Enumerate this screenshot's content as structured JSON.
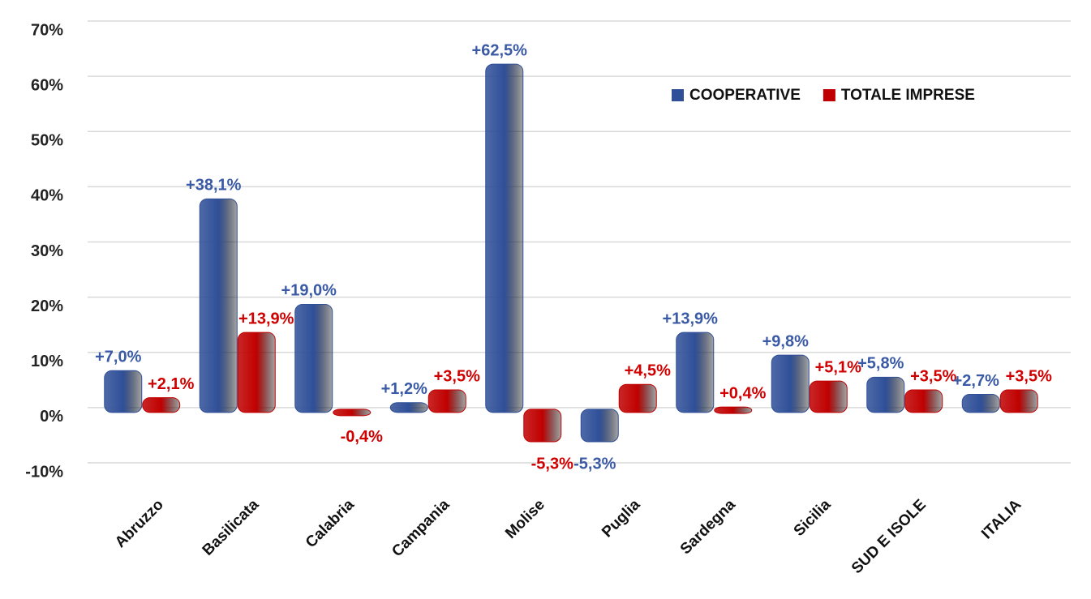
{
  "chart_data": {
    "type": "bar",
    "categories": [
      "Abruzzo",
      "Basilicata",
      "Calabria",
      "Campania",
      "Molise",
      "Puglia",
      "Sardegna",
      "Sicilia",
      "SUD E ISOLE",
      "ITALIA"
    ],
    "series": [
      {
        "name": "COOPERATIVE",
        "color": "#2f4f98",
        "label_color": "#3a5aa6",
        "values": [
          7.0,
          38.1,
          19.0,
          1.2,
          62.5,
          -5.3,
          13.9,
          9.8,
          5.8,
          2.7
        ],
        "value_labels": [
          "+7,0%",
          "+38,1%",
          "+19,0%",
          "+1,2%",
          "+62,5%",
          "-5,3%",
          "+13,9%",
          "+9,8%",
          "+5,8%",
          "+2,7%"
        ]
      },
      {
        "name": "TOTALE IMPRESE",
        "color": "#c00000",
        "label_color": "#d00000",
        "values": [
          2.1,
          13.9,
          -0.4,
          3.5,
          -5.3,
          4.5,
          0.4,
          5.1,
          3.5,
          3.5
        ],
        "value_labels": [
          "+2,1%",
          "+13,9%",
          "-0,4%",
          "+3,5%",
          "-5,3%",
          "+4,5%",
          "+0,4%",
          "+5,1%",
          "+3,5%",
          "+3,5%"
        ]
      }
    ],
    "ylim": [
      -10,
      70
    ],
    "yticks": [
      {
        "value": -10,
        "label": "-10%"
      },
      {
        "value": 0,
        "label": "0%"
      },
      {
        "value": 10,
        "label": "10%"
      },
      {
        "value": 20,
        "label": "20%"
      },
      {
        "value": 30,
        "label": "30%"
      },
      {
        "value": 40,
        "label": "40%"
      },
      {
        "value": 50,
        "label": "50%"
      },
      {
        "value": 60,
        "label": "60%"
      },
      {
        "value": 70,
        "label": "70%"
      }
    ],
    "grid": true,
    "legend": "top-right"
  }
}
